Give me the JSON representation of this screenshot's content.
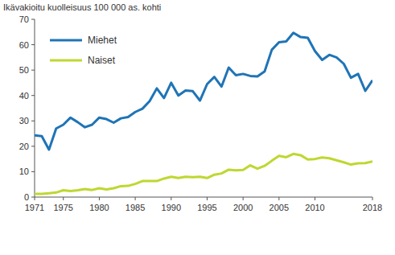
{
  "chart_data": {
    "type": "line",
    "y_label": "Ikävakioitu kuolleisuus 100 000 as. kohti",
    "x": [
      1971,
      1972,
      1973,
      1974,
      1975,
      1976,
      1977,
      1978,
      1979,
      1980,
      1981,
      1982,
      1983,
      1984,
      1985,
      1986,
      1987,
      1988,
      1989,
      1990,
      1991,
      1992,
      1993,
      1994,
      1995,
      1996,
      1997,
      1998,
      1999,
      2000,
      2001,
      2002,
      2003,
      2004,
      2005,
      2006,
      2007,
      2008,
      2009,
      2010,
      2011,
      2012,
      2013,
      2014,
      2015,
      2016,
      2017,
      2018
    ],
    "series": [
      {
        "name": "Miehet",
        "color": "#1f74b6",
        "values": [
          24.3,
          24,
          18.7,
          27,
          28.5,
          31.3,
          29.5,
          27.5,
          28.5,
          31.3,
          30.7,
          29.3,
          31,
          31.5,
          33.5,
          34.8,
          37.8,
          42.8,
          39,
          45,
          40,
          42,
          41.7,
          38,
          44.5,
          47.3,
          43.5,
          51,
          48,
          48.5,
          47.7,
          47.5,
          49.5,
          58,
          61,
          61.3,
          64.7,
          63,
          62.7,
          57.5,
          54,
          56,
          55,
          52.5,
          47,
          48.5,
          41.8,
          46
        ]
      },
      {
        "name": "Naiset",
        "color": "#bfd730",
        "values": [
          1.3,
          1.3,
          1.5,
          1.8,
          2.7,
          2.4,
          2.7,
          3.2,
          2.8,
          3.5,
          3.0,
          3.5,
          4.3,
          4.4,
          5.2,
          6.3,
          6.3,
          6.3,
          7.3,
          8,
          7.5,
          8,
          7.8,
          8,
          7.5,
          8.8,
          9.3,
          10.8,
          10.5,
          10.7,
          12.5,
          11.2,
          12.3,
          14.3,
          16.2,
          15.7,
          17,
          16.5,
          14.8,
          15,
          15.6,
          15.3,
          14.5,
          13.7,
          12.8,
          13.3,
          13.4,
          14
        ]
      }
    ],
    "xlim": [
      1971,
      2018
    ],
    "xticks": [
      1971,
      1975,
      1980,
      1985,
      1990,
      1995,
      2000,
      2005,
      2010,
      2018
    ],
    "ylim": [
      0,
      70
    ],
    "yticks": [
      0,
      10,
      20,
      30,
      40,
      50,
      60,
      70
    ],
    "grid": false,
    "legend": "top-left"
  }
}
